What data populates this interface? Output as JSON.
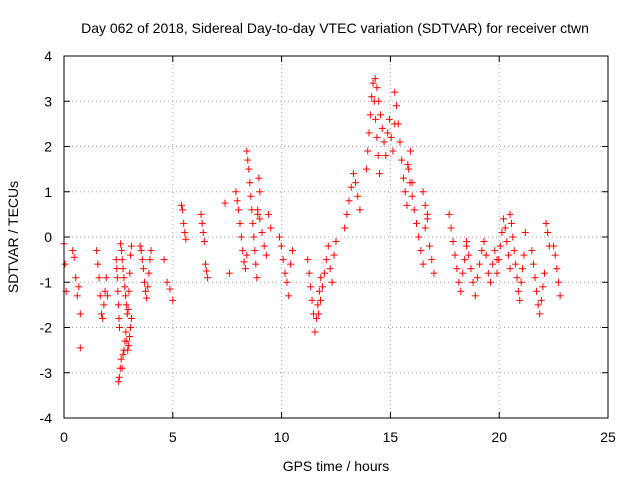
{
  "chart_data": {
    "type": "scatter",
    "title": "Day 062 of 2018, Sidereal Day-to-day VTEC variation (SDTVAR) for receiver ctwn",
    "xlabel": "GPS time / hours",
    "ylabel": "SDTVAR / TECUs",
    "xlim": [
      0,
      25
    ],
    "ylim": [
      -4,
      4
    ],
    "xticks": [
      0,
      5,
      10,
      15,
      20,
      25
    ],
    "yticks": [
      -4,
      -3,
      -2,
      -1,
      0,
      1,
      2,
      3,
      4
    ],
    "xtick_labels": [
      "0",
      "5",
      "10",
      "15",
      "20",
      "25"
    ],
    "ytick_labels": [
      "-4",
      "-3",
      "-2",
      "-1",
      "0",
      "1",
      "2",
      "3",
      "4"
    ],
    "grid": true,
    "marker": "plus",
    "color": "#ff0000",
    "series": [
      {
        "name": "SDTVAR",
        "segments": [
          {
            "x0": 0.0,
            "x1": 0.1,
            "y": [
              -0.15,
              -0.6,
              -1.2
            ]
          },
          {
            "x0": 0.4,
            "x1": 0.75,
            "y": [
              -0.3,
              -0.45,
              -0.9,
              -1.3,
              -1.1,
              -1.7
            ]
          },
          {
            "x0": 0.75,
            "x1": 0.8,
            "y": [
              -2.45
            ]
          },
          {
            "x0": 1.5,
            "x1": 2.0,
            "y": [
              -0.3,
              -0.6,
              -0.9,
              -1.3,
              -1.7,
              -1.8,
              -1.5,
              -1.2,
              -0.9,
              -1.3
            ]
          },
          {
            "x0": 2.4,
            "x1": 2.55,
            "y": [
              -0.5,
              -0.7,
              -0.9,
              -1.2,
              -1.5,
              -1.8,
              -2.0
            ]
          },
          {
            "x0": 2.5,
            "x1": 3.1,
            "y": [
              -3.2,
              -3.1,
              -2.9,
              -2.7,
              -2.9,
              -2.6,
              -2.5,
              -2.3,
              -2.1,
              -2.3,
              -2.5,
              -2.4,
              -2.2,
              -2.0,
              -1.8
            ]
          },
          {
            "x0": 2.6,
            "x1": 3.1,
            "y": [
              -0.15,
              -0.3,
              -0.5,
              -0.7,
              -0.9,
              -1.1,
              -1.3,
              -1.5,
              -1.7,
              -1.6,
              -1.2,
              -0.8,
              -0.4,
              -0.2
            ]
          },
          {
            "x0": 3.5,
            "x1": 4.0,
            "y": [
              -0.2,
              -0.3,
              -0.5,
              -0.7,
              -1.0,
              -1.2,
              -1.35,
              -1.1,
              -0.8,
              -0.5,
              -0.3
            ]
          },
          {
            "x0": 4.6,
            "x1": 5.0,
            "y": [
              -0.5,
              -1.0,
              -1.15,
              -1.4
            ]
          },
          {
            "x0": 5.4,
            "x1": 5.6,
            "y": [
              0.7,
              0.6,
              0.3,
              0.1,
              -0.05
            ]
          },
          {
            "x0": 6.3,
            "x1": 6.6,
            "y": [
              0.5,
              0.3,
              0.1,
              -0.1,
              -0.6,
              -0.75,
              -0.9
            ]
          },
          {
            "x0": 7.4,
            "x1": 7.6,
            "y": [
              0.75,
              -0.8
            ]
          },
          {
            "x0": 7.9,
            "x1": 8.4,
            "y": [
              1.0,
              0.8,
              0.6,
              0.3,
              0.0,
              -0.3,
              -0.55,
              -0.7,
              -0.4
            ]
          },
          {
            "x0": 8.4,
            "x1": 9.0,
            "y": [
              1.9,
              1.7,
              1.5,
              1.2,
              0.9,
              0.6,
              0.3,
              0.0,
              -0.3,
              -0.6,
              -0.9,
              0.5,
              1.3,
              1.0
            ]
          },
          {
            "x0": 8.9,
            "x1": 9.5,
            "y": [
              0.6,
              0.4,
              0.1,
              -0.2,
              -0.4,
              0.5,
              0.2
            ]
          },
          {
            "x0": 9.9,
            "x1": 10.5,
            "y": [
              0.0,
              -0.2,
              -0.5,
              -0.8,
              -1.0,
              -1.3,
              -0.6,
              -0.3
            ]
          },
          {
            "x0": 11.2,
            "x1": 11.8,
            "y": [
              -0.5,
              -0.8,
              -1.1,
              -1.4,
              -1.7,
              -2.1,
              -1.8,
              -1.5,
              -1.2,
              -0.9
            ]
          },
          {
            "x0": 11.7,
            "x1": 12.5,
            "y": [
              -1.7,
              -1.4,
              -1.1,
              -0.8,
              -0.5,
              -0.2,
              -0.7,
              -1.0,
              -0.4,
              -0.1
            ]
          },
          {
            "x0": 12.9,
            "x1": 13.6,
            "y": [
              0.2,
              0.5,
              0.8,
              1.1,
              1.4,
              1.2,
              0.9,
              0.6
            ]
          },
          {
            "x0": 13.9,
            "x1": 14.5,
            "y": [
              1.5,
              1.9,
              2.3,
              2.7,
              3.1,
              3.4,
              3.0,
              2.6,
              2.2,
              1.8,
              1.4
            ]
          },
          {
            "x0": 14.3,
            "x1": 15.2,
            "y": [
              3.5,
              3.3,
              3.0,
              2.7,
              2.4,
              2.1,
              1.8,
              2.3,
              2.6,
              2.2,
              1.9,
              2.5
            ]
          },
          {
            "x0": 15.2,
            "x1": 16.0,
            "y": [
              3.2,
              2.9,
              2.5,
              2.1,
              1.7,
              1.3,
              1.0,
              0.7,
              1.5,
              1.9,
              1.2
            ]
          },
          {
            "x0": 15.8,
            "x1": 16.7,
            "y": [
              1.6,
              1.2,
              0.9,
              0.6,
              0.3,
              0.0,
              -0.3,
              -0.6,
              0.2,
              0.5
            ]
          },
          {
            "x0": 16.5,
            "x1": 17.0,
            "y": [
              1.0,
              0.7,
              0.4,
              -0.2,
              -0.5,
              -0.8
            ]
          },
          {
            "x0": 17.7,
            "x1": 18.5,
            "y": [
              0.5,
              0.2,
              -0.1,
              -0.4,
              -0.7,
              -1.0,
              -1.2,
              -0.8,
              -0.5,
              -0.2
            ]
          },
          {
            "x0": 18.5,
            "x1": 19.9,
            "y": [
              -0.1,
              -0.4,
              -0.7,
              -1.0,
              -1.3,
              -0.9,
              -0.6,
              -0.3,
              -0.1,
              -0.4,
              -0.8,
              -1.0,
              -0.6,
              -0.3,
              -0.5
            ]
          },
          {
            "x0": 19.9,
            "x1": 20.5,
            "y": [
              -0.8,
              -0.5,
              -0.2,
              0.1,
              0.4,
              0.2,
              -0.1,
              -0.4,
              -0.7
            ]
          },
          {
            "x0": 20.5,
            "x1": 21.2,
            "y": [
              0.5,
              0.3,
              0.0,
              -0.3,
              -0.6,
              -0.9,
              -1.2,
              -1.4,
              -1.0,
              -0.7,
              -0.4,
              0.1
            ]
          },
          {
            "x0": 21.5,
            "x1": 22.3,
            "y": [
              -0.3,
              -0.6,
              -0.9,
              -1.2,
              -1.5,
              -1.7,
              -1.4,
              -1.1,
              -0.8,
              0.3,
              0.1,
              -0.2
            ]
          },
          {
            "x0": 22.5,
            "x1": 22.8,
            "y": [
              -0.2,
              -0.4,
              -0.7,
              -1.0,
              -1.3
            ]
          }
        ]
      }
    ]
  }
}
